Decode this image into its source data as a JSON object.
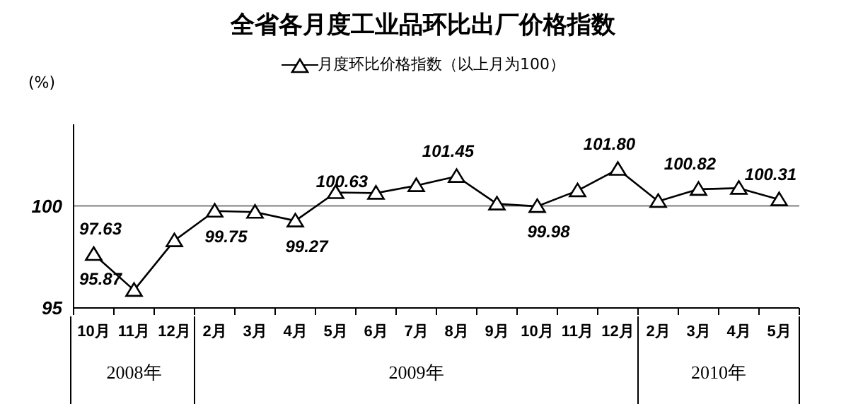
{
  "chart_data": {
    "type": "line",
    "title": "全省各月度工业品环比出厂价格指数",
    "ylabel": "(%)",
    "categories": [
      "10月",
      "11月",
      "12月",
      "2月",
      "3月",
      "4月",
      "5月",
      "6月",
      "7月",
      "8月",
      "9月",
      "10月",
      "11月",
      "12月",
      "2月",
      "3月",
      "4月",
      "5月"
    ],
    "series": [
      {
        "name": "月度环比价格指数（以上月为100）",
        "color": "#000000",
        "values": [
          97.63,
          95.87,
          98.3,
          99.75,
          99.7,
          99.27,
          100.66,
          100.63,
          101.0,
          101.45,
          100.1,
          99.98,
          100.75,
          101.8,
          100.23,
          100.82,
          100.87,
          100.31
        ],
        "value_labels": [
          "97.63",
          "95.87",
          null,
          "99.75",
          null,
          "99.27",
          null,
          "100.63",
          null,
          "101.45",
          null,
          "99.98",
          null,
          "101.80",
          null,
          "100.82",
          null,
          "100.31"
        ]
      }
    ],
    "annotations": [
      "2008年",
      "2009年",
      "2010年"
    ],
    "ylim": [
      95,
      104
    ],
    "yticks": [
      95,
      100
    ],
    "ref_lines": [
      {
        "axis": "y",
        "value": 100,
        "color": "#808080"
      }
    ],
    "grid": false,
    "legend": "top",
    "marker": "triangle",
    "line_style": "solid"
  }
}
